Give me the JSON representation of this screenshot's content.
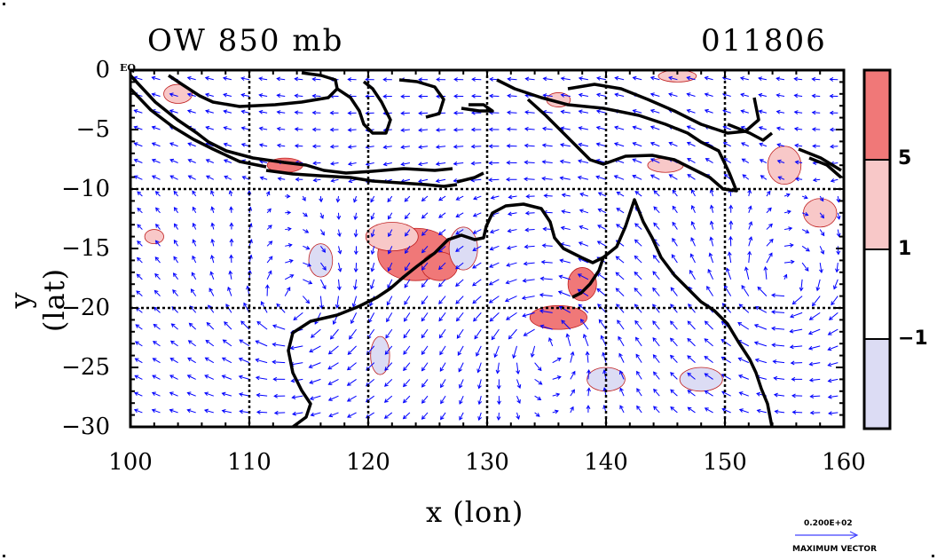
{
  "map": {
    "title": "OW 850 mb",
    "timestamp": "011806",
    "xlabel": "x (lon)",
    "ylabel": "y (lat)",
    "eq_label": "EQ",
    "lon_range": [
      100,
      160
    ],
    "lat_range": [
      -30,
      0
    ],
    "x_ticks": [
      "100",
      "110",
      "120",
      "130",
      "140",
      "150",
      "160"
    ],
    "y_ticks": [
      "0",
      "−5",
      "−10",
      "−15",
      "−20",
      "−25",
      "−30"
    ],
    "dashed_gridlines": {
      "lon": [
        110,
        120,
        130,
        140,
        150
      ],
      "lat": [
        -10,
        -20
      ]
    },
    "colors": {
      "strong_positive": "#f07878",
      "positive": "#f8c8c8",
      "neutral": "#ffffff",
      "negative": "#dcdcf4",
      "vector": "#0000ff",
      "coast": "#000000"
    }
  },
  "colorbar": {
    "labels": [
      "5",
      "1",
      "−1"
    ]
  },
  "vector_key": {
    "value": "0.200E+02",
    "caption": "MAXIMUM VECTOR"
  }
}
